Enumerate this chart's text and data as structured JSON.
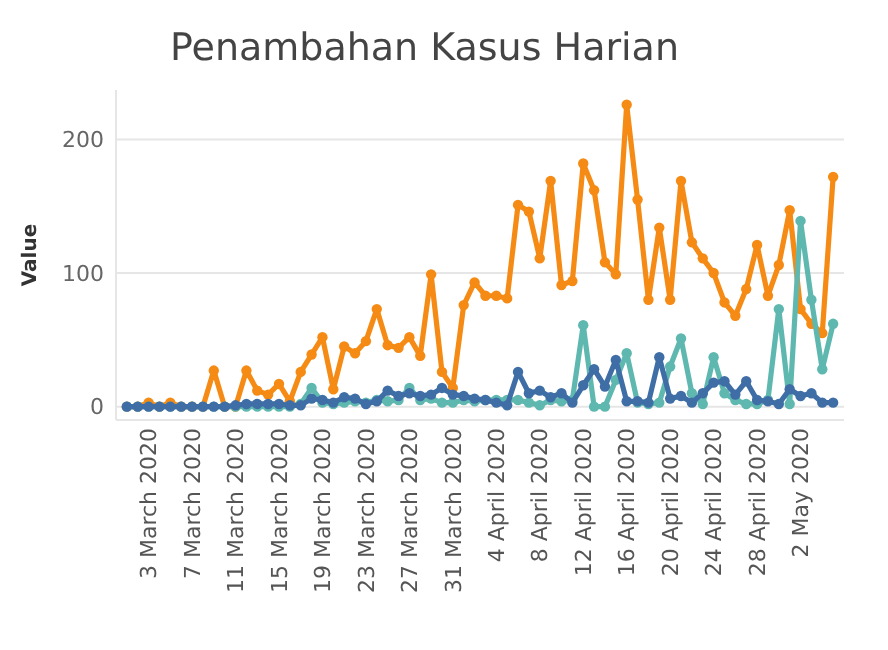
{
  "chart_data": {
    "type": "line",
    "title": "Penambahan Kasus Harian",
    "ylabel": "Value",
    "x": [
      "2020-03-01",
      "2020-03-02",
      "2020-03-03",
      "2020-03-04",
      "2020-03-05",
      "2020-03-06",
      "2020-03-07",
      "2020-03-08",
      "2020-03-09",
      "2020-03-10",
      "2020-03-11",
      "2020-03-12",
      "2020-03-13",
      "2020-03-14",
      "2020-03-15",
      "2020-03-16",
      "2020-03-17",
      "2020-03-18",
      "2020-03-19",
      "2020-03-20",
      "2020-03-21",
      "2020-03-22",
      "2020-03-23",
      "2020-03-24",
      "2020-03-25",
      "2020-03-26",
      "2020-03-27",
      "2020-03-28",
      "2020-03-29",
      "2020-03-30",
      "2020-03-31",
      "2020-04-01",
      "2020-04-02",
      "2020-04-03",
      "2020-04-04",
      "2020-04-05",
      "2020-04-06",
      "2020-04-07",
      "2020-04-08",
      "2020-04-09",
      "2020-04-10",
      "2020-04-11",
      "2020-04-12",
      "2020-04-13",
      "2020-04-14",
      "2020-04-15",
      "2020-04-16",
      "2020-04-17",
      "2020-04-18",
      "2020-04-19",
      "2020-04-20",
      "2020-04-21",
      "2020-04-22",
      "2020-04-23",
      "2020-04-24",
      "2020-04-25",
      "2020-04-26",
      "2020-04-27",
      "2020-04-28",
      "2020-04-29",
      "2020-04-30",
      "2020-05-01",
      "2020-05-02",
      "2020-05-03",
      "2020-05-04",
      "2020-05-05"
    ],
    "series": [
      {
        "color": "#f58b14",
        "values": [
          0,
          0,
          3,
          0,
          3,
          0,
          0,
          0,
          27,
          0,
          0,
          27,
          12,
          9,
          17,
          4,
          26,
          39,
          52,
          13,
          45,
          40,
          49,
          73,
          46,
          44,
          52,
          38,
          99,
          26,
          14,
          76,
          93,
          83,
          83,
          81,
          151,
          146,
          111,
          169,
          91,
          94,
          182,
          162,
          108,
          99,
          226,
          155,
          80,
          134,
          80,
          169,
          123,
          111,
          100,
          78,
          68,
          88,
          121,
          83,
          106,
          147,
          73,
          62,
          55,
          172
        ]
      },
      {
        "color": "#5fb8b0",
        "values": [
          0,
          0,
          0,
          0,
          0,
          0,
          0,
          0,
          0,
          0,
          0,
          0,
          0,
          0,
          0,
          0,
          2,
          14,
          3,
          2,
          3,
          4,
          3,
          5,
          4,
          5,
          14,
          5,
          6,
          3,
          3,
          5,
          4,
          5,
          5,
          5,
          5,
          3,
          1,
          5,
          4,
          5,
          61,
          0,
          0,
          20,
          40,
          3,
          2,
          3,
          30,
          51,
          10,
          2,
          37,
          10,
          5,
          2,
          2,
          5,
          73,
          2,
          139,
          80,
          28,
          62
        ]
      },
      {
        "color": "#3f6ea6",
        "values": [
          0,
          0,
          0,
          0,
          0,
          0,
          0,
          0,
          0,
          0,
          1,
          2,
          2,
          2,
          2,
          1,
          1,
          6,
          5,
          3,
          7,
          6,
          2,
          4,
          12,
          8,
          10,
          8,
          9,
          14,
          9,
          8,
          6,
          5,
          3,
          1,
          26,
          10,
          12,
          7,
          10,
          3,
          16,
          28,
          15,
          35,
          4,
          4,
          3,
          37,
          6,
          8,
          3,
          10,
          18,
          19,
          9,
          19,
          5,
          4,
          2,
          13,
          8,
          10,
          3,
          3
        ]
      }
    ],
    "xlim": [
      "2020-02-29",
      "2020-05-06"
    ],
    "xticks": [
      {
        "value": "2020-03-03",
        "label": "3 March 2020"
      },
      {
        "value": "2020-03-07",
        "label": "7 March 2020"
      },
      {
        "value": "2020-03-11",
        "label": "11 March 2020"
      },
      {
        "value": "2020-03-15",
        "label": "15 March 2020"
      },
      {
        "value": "2020-03-19",
        "label": "19 March 2020"
      },
      {
        "value": "2020-03-23",
        "label": "23 March 2020"
      },
      {
        "value": "2020-03-27",
        "label": "27 March 2020"
      },
      {
        "value": "2020-03-31",
        "label": "31 March 2020"
      },
      {
        "value": "2020-04-04",
        "label": "4 April 2020"
      },
      {
        "value": "2020-04-08",
        "label": "8 April 2020"
      },
      {
        "value": "2020-04-12",
        "label": "12 April 2020"
      },
      {
        "value": "2020-04-16",
        "label": "16 April 2020"
      },
      {
        "value": "2020-04-20",
        "label": "20 April 2020"
      },
      {
        "value": "2020-04-24",
        "label": "24 April 2020"
      },
      {
        "value": "2020-04-28",
        "label": "28 April 2020"
      },
      {
        "value": "2020-05-02",
        "label": "2 May 2020"
      }
    ],
    "ylim": [
      -10,
      237
    ],
    "yticks": [
      0,
      100,
      200
    ],
    "grid": "y",
    "marker": "circle",
    "line_style": "solid"
  }
}
